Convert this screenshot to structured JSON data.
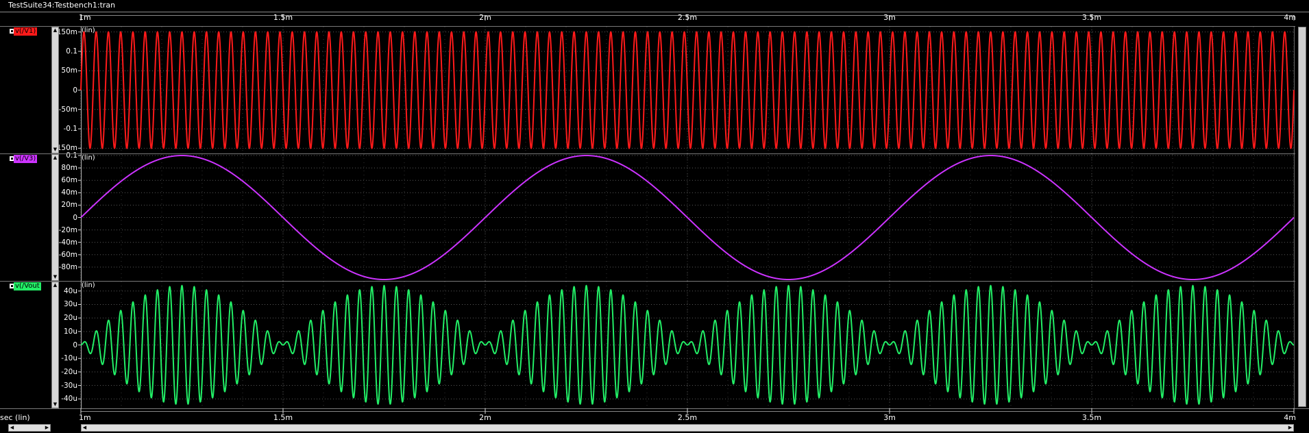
{
  "window": {
    "title": "TestSuite34:Testbench1:tran"
  },
  "x_axis": {
    "unit_label": "sec (lin)",
    "ticks": [
      "1m",
      "1.5m",
      "2m",
      "2.5m",
      "3m",
      "3.5m",
      "4m"
    ]
  },
  "panels": [
    {
      "signal_label": "v(/V1)",
      "scale_label": "(lin)",
      "color": "#ff1a1a",
      "ticks": [
        "150m",
        "0.1",
        "50m",
        "0",
        "-50m",
        "-0.1",
        "-150m"
      ]
    },
    {
      "signal_label": "v(/V3)",
      "scale_label": "(lin)",
      "color": "#cc33ff",
      "ticks": [
        "0.1",
        "80m",
        "60m",
        "40m",
        "20m",
        "0",
        "-20m",
        "-40m",
        "-60m",
        "-80m"
      ]
    },
    {
      "signal_label": "v(/Vout",
      "scale_label": "(lin)",
      "color": "#22ee66",
      "ticks": [
        "40u",
        "30u",
        "20u",
        "10u",
        "0",
        "-10u",
        "-20u",
        "-30u",
        "-40u"
      ]
    }
  ],
  "chart_data": [
    {
      "type": "line",
      "title": "v(/V1)",
      "xlabel": "sec (lin)",
      "ylabel": "(lin)",
      "xlim": [
        0.001,
        0.004
      ],
      "ylim": [
        -0.16,
        0.16
      ],
      "series": [
        {
          "name": "v(/V1)",
          "function": "sine",
          "amplitude": 0.15,
          "frequency_hz": 33000,
          "phase_deg": 0,
          "offset": 0
        }
      ],
      "grid": true
    },
    {
      "type": "line",
      "title": "v(/V3)",
      "xlabel": "sec (lin)",
      "ylabel": "(lin)",
      "xlim": [
        0.001,
        0.004
      ],
      "ylim": [
        -0.1,
        0.1
      ],
      "series": [
        {
          "name": "v(/V3)",
          "function": "sine",
          "amplitude": 0.1,
          "frequency_hz": 1000,
          "phase_deg": 0,
          "offset": 0
        }
      ],
      "grid": true
    },
    {
      "type": "line",
      "title": "v(/Vout",
      "xlabel": "sec (lin)",
      "ylabel": "(lin)",
      "xlim": [
        0.001,
        0.004
      ],
      "ylim": [
        -4.6e-05,
        4.6e-05
      ],
      "series": [
        {
          "name": "v(/Vout",
          "function": "beat",
          "amplitude": 4.4e-05,
          "carrier_hz": 33000,
          "envelope_hz": 1000,
          "offset": 0
        }
      ],
      "grid": true
    }
  ]
}
